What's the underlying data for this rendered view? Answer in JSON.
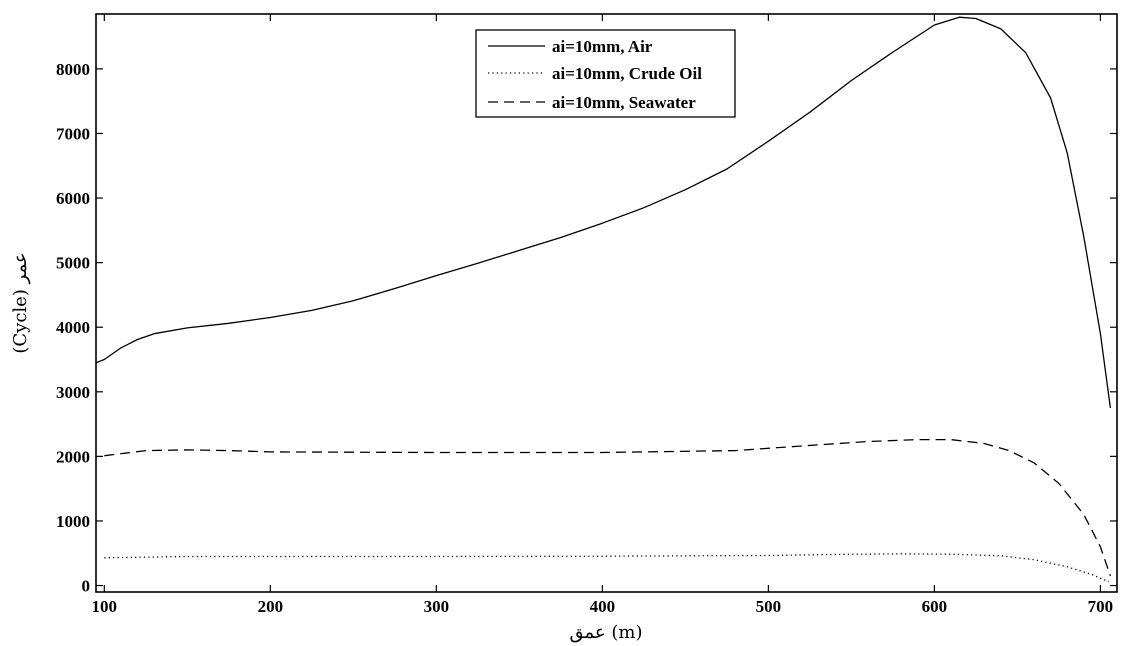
{
  "chart_data": {
    "type": "line",
    "xlabel": "عمق (m)",
    "ylabel": "(Cycle) عمر",
    "xlim": [
      95,
      710
    ],
    "ylim": [
      -100,
      8850
    ],
    "x_ticks": [
      100,
      200,
      300,
      400,
      500,
      600,
      700
    ],
    "y_ticks": [
      0,
      1000,
      2000,
      3000,
      4000,
      5000,
      6000,
      7000,
      8000
    ],
    "grid": false,
    "legend_position": "top-center",
    "series": [
      {
        "name": "ai=10mm, Air",
        "style": "solid",
        "color": "#000000",
        "points": [
          [
            95,
            3450
          ],
          [
            100,
            3500
          ],
          [
            110,
            3680
          ],
          [
            120,
            3810
          ],
          [
            130,
            3900
          ],
          [
            150,
            3990
          ],
          [
            175,
            4060
          ],
          [
            200,
            4150
          ],
          [
            225,
            4260
          ],
          [
            250,
            4410
          ],
          [
            275,
            4600
          ],
          [
            300,
            4800
          ],
          [
            325,
            4990
          ],
          [
            350,
            5190
          ],
          [
            375,
            5390
          ],
          [
            400,
            5610
          ],
          [
            425,
            5850
          ],
          [
            450,
            6130
          ],
          [
            475,
            6450
          ],
          [
            500,
            6880
          ],
          [
            525,
            7330
          ],
          [
            550,
            7820
          ],
          [
            575,
            8260
          ],
          [
            600,
            8680
          ],
          [
            615,
            8800
          ],
          [
            625,
            8780
          ],
          [
            640,
            8620
          ],
          [
            655,
            8250
          ],
          [
            670,
            7550
          ],
          [
            680,
            6700
          ],
          [
            690,
            5400
          ],
          [
            700,
            3900
          ],
          [
            706,
            2750
          ]
        ]
      },
      {
        "name": "ai=10mm, Crude Oil",
        "style": "dotted",
        "color": "#000000",
        "points": [
          [
            100,
            430
          ],
          [
            150,
            450
          ],
          [
            200,
            450
          ],
          [
            300,
            450
          ],
          [
            400,
            455
          ],
          [
            500,
            465
          ],
          [
            550,
            485
          ],
          [
            580,
            490
          ],
          [
            610,
            485
          ],
          [
            640,
            460
          ],
          [
            660,
            400
          ],
          [
            680,
            290
          ],
          [
            695,
            170
          ],
          [
            705,
            60
          ]
        ]
      },
      {
        "name": "ai=10mm, Seawater",
        "style": "dashed",
        "color": "#000000",
        "points": [
          [
            100,
            2010
          ],
          [
            125,
            2090
          ],
          [
            150,
            2100
          ],
          [
            175,
            2090
          ],
          [
            200,
            2070
          ],
          [
            300,
            2060
          ],
          [
            400,
            2060
          ],
          [
            480,
            2090
          ],
          [
            520,
            2160
          ],
          [
            560,
            2230
          ],
          [
            590,
            2260
          ],
          [
            610,
            2260
          ],
          [
            630,
            2200
          ],
          [
            645,
            2090
          ],
          [
            660,
            1900
          ],
          [
            675,
            1580
          ],
          [
            690,
            1100
          ],
          [
            700,
            600
          ],
          [
            706,
            150
          ]
        ]
      }
    ]
  }
}
